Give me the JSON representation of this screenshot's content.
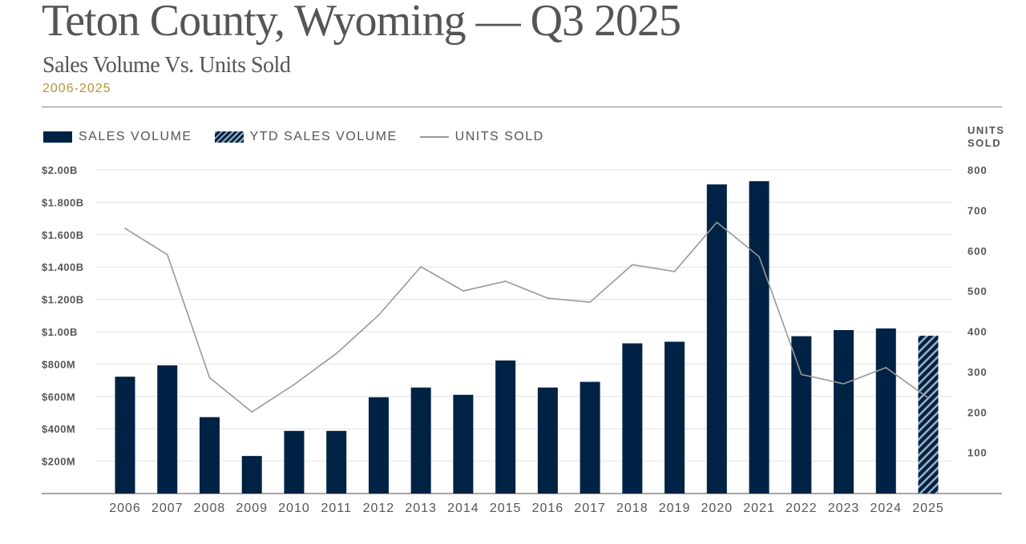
{
  "header": {
    "title": "Teton County, Wyoming — Q3 2025",
    "subtitle": "Sales Volume Vs. Units Sold",
    "range": "2006-2025"
  },
  "legend": {
    "sales": "SALES VOLUME",
    "ytd": "YTD SALES VOLUME",
    "units": "UNITS SOLD"
  },
  "chart_data": {
    "type": "bar",
    "title": "Sales Volume Vs. Units Sold",
    "categories": [
      "2006",
      "2007",
      "2008",
      "2009",
      "2010",
      "2011",
      "2012",
      "2013",
      "2014",
      "2015",
      "2016",
      "2017",
      "2018",
      "2019",
      "2020",
      "2021",
      "2022",
      "2023",
      "2024",
      "2025"
    ],
    "series": [
      {
        "name": "SALES VOLUME",
        "type": "bar",
        "axis": "left",
        "unit": "$M",
        "values": [
          722,
          792,
          472,
          232,
          387,
          387,
          595,
          655,
          610,
          822,
          655,
          690,
          928,
          938,
          1910,
          1930,
          972,
          1010,
          1020,
          975
        ],
        "ytd_index": 19
      },
      {
        "name": "UNITS SOLD",
        "type": "line",
        "axis": "right",
        "values": [
          655,
          590,
          285,
          200,
          268,
          345,
          440,
          560,
          500,
          524,
          482,
          472,
          565,
          548,
          670,
          585,
          293,
          270,
          310,
          235
        ]
      }
    ],
    "left_axis": {
      "ylim": [
        0,
        2000
      ],
      "ticks": [
        "$200M",
        "$400M",
        "$600M",
        "$800M",
        "$1.00B",
        "$1.200B",
        "$1.400B",
        "$1.600B",
        "$1.800B",
        "$2.00B"
      ],
      "tick_values": [
        200,
        400,
        600,
        800,
        1000,
        1200,
        1400,
        1600,
        1800,
        2000
      ]
    },
    "right_axis": {
      "label": "UNITS SOLD",
      "ylim": [
        0,
        800
      ],
      "ticks": [
        "100",
        "200",
        "300",
        "400",
        "500",
        "600",
        "700",
        "800"
      ],
      "tick_values": [
        100,
        200,
        300,
        400,
        500,
        600,
        700,
        800
      ]
    },
    "grid": true,
    "legend_position": "top-left",
    "colors": {
      "bar": "#002244",
      "hatch_light": "#9fb0c3",
      "line": "#999999",
      "grid": "#e2e2e2"
    }
  }
}
